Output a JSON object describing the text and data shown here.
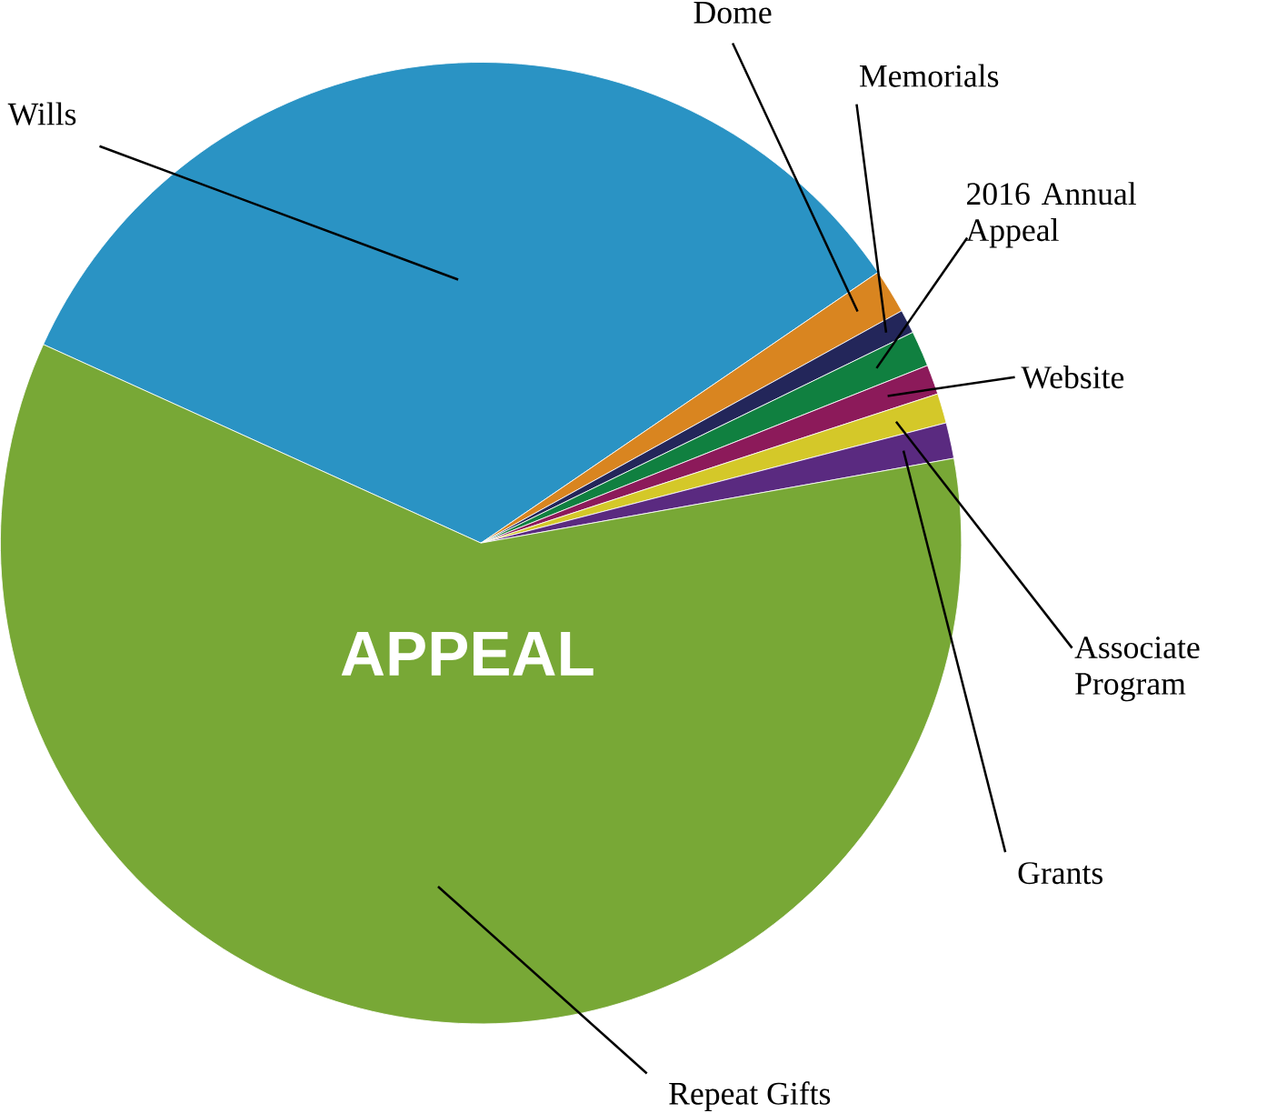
{
  "chart_data": {
    "type": "pie",
    "title": "APPEAL",
    "categories": [
      "Wills",
      "Dome",
      "Memorials",
      "2016 Annual Appeal",
      "Website",
      "Associate Program",
      "Grants",
      "Repeat Gifts"
    ],
    "values": [
      33.7,
      1.5,
      0.8,
      1.2,
      1.0,
      1.0,
      1.2,
      59.6
    ],
    "colors": [
      "#2a93c4",
      "#d98520",
      "#23265a",
      "#108040",
      "#8c1a5a",
      "#d4c829",
      "#5a2a80",
      "#78a836"
    ]
  }
}
